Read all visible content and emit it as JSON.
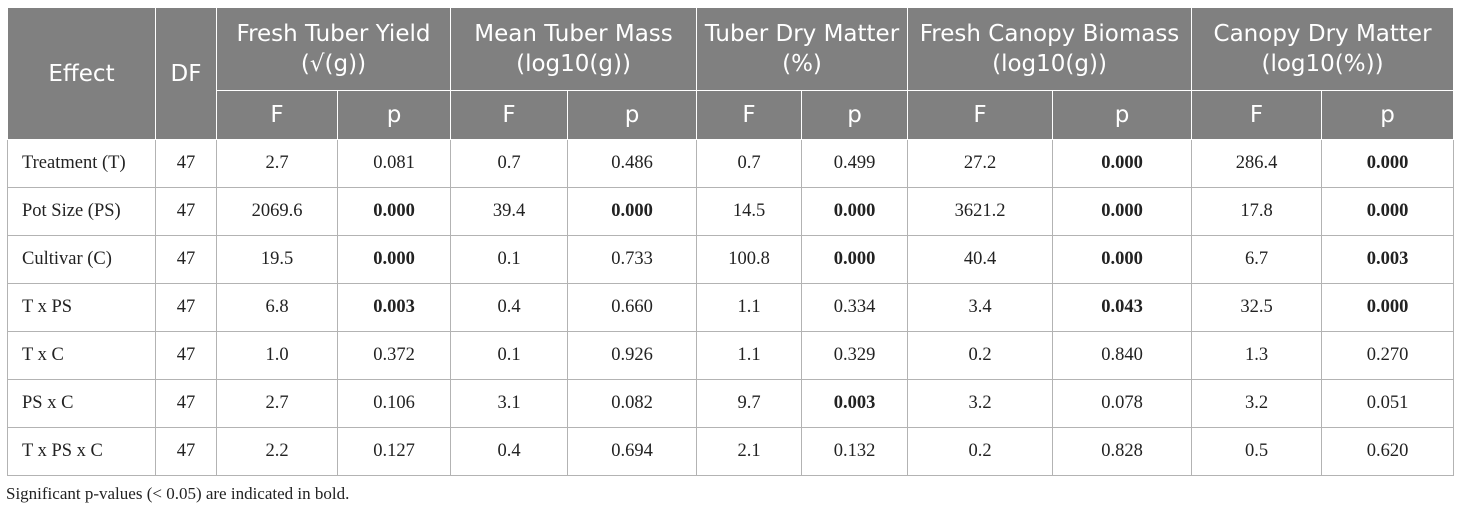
{
  "table": {
    "header": {
      "effect": "Effect",
      "df": "DF",
      "groups": [
        "Fresh Tuber Yield (√(g))",
        "Mean Tuber Mass (log10(g))",
        "Tuber Dry Matter (%)",
        "Fresh Canopy Biomass (log10(g))",
        "Canopy Dry Matter (log10(%))"
      ],
      "sub": [
        "F",
        "p",
        "F",
        "p",
        "F",
        "p",
        "F",
        "p",
        "F",
        "p"
      ]
    },
    "rows": [
      {
        "effect": "Treatment (T)",
        "df": "47",
        "cells": [
          {
            "v": "2.7",
            "b": false
          },
          {
            "v": "0.081",
            "b": false
          },
          {
            "v": "0.7",
            "b": false
          },
          {
            "v": "0.486",
            "b": false
          },
          {
            "v": "0.7",
            "b": false
          },
          {
            "v": "0.499",
            "b": false
          },
          {
            "v": "27.2",
            "b": false
          },
          {
            "v": "0.000",
            "b": true
          },
          {
            "v": "286.4",
            "b": false
          },
          {
            "v": "0.000",
            "b": true
          }
        ]
      },
      {
        "effect": "Pot Size (PS)",
        "df": "47",
        "cells": [
          {
            "v": "2069.6",
            "b": false
          },
          {
            "v": "0.000",
            "b": true
          },
          {
            "v": "39.4",
            "b": false
          },
          {
            "v": "0.000",
            "b": true
          },
          {
            "v": "14.5",
            "b": false
          },
          {
            "v": "0.000",
            "b": true
          },
          {
            "v": "3621.2",
            "b": false
          },
          {
            "v": "0.000",
            "b": true
          },
          {
            "v": "17.8",
            "b": false
          },
          {
            "v": "0.000",
            "b": true
          }
        ]
      },
      {
        "effect": "Cultivar (C)",
        "df": "47",
        "cells": [
          {
            "v": "19.5",
            "b": false
          },
          {
            "v": "0.000",
            "b": true
          },
          {
            "v": "0.1",
            "b": false
          },
          {
            "v": "0.733",
            "b": false
          },
          {
            "v": "100.8",
            "b": false
          },
          {
            "v": "0.000",
            "b": true
          },
          {
            "v": "40.4",
            "b": false
          },
          {
            "v": "0.000",
            "b": true
          },
          {
            "v": "6.7",
            "b": false
          },
          {
            "v": "0.003",
            "b": true
          }
        ]
      },
      {
        "effect": "T x PS",
        "df": "47",
        "cells": [
          {
            "v": "6.8",
            "b": false
          },
          {
            "v": "0.003",
            "b": true
          },
          {
            "v": "0.4",
            "b": false
          },
          {
            "v": "0.660",
            "b": false
          },
          {
            "v": "1.1",
            "b": false
          },
          {
            "v": "0.334",
            "b": false
          },
          {
            "v": "3.4",
            "b": false
          },
          {
            "v": "0.043",
            "b": true
          },
          {
            "v": "32.5",
            "b": false
          },
          {
            "v": "0.000",
            "b": true
          }
        ]
      },
      {
        "effect": "T x C",
        "df": "47",
        "cells": [
          {
            "v": "1.0",
            "b": false
          },
          {
            "v": "0.372",
            "b": false
          },
          {
            "v": "0.1",
            "b": false
          },
          {
            "v": "0.926",
            "b": false
          },
          {
            "v": "1.1",
            "b": false
          },
          {
            "v": "0.329",
            "b": false
          },
          {
            "v": "0.2",
            "b": false
          },
          {
            "v": "0.840",
            "b": false
          },
          {
            "v": "1.3",
            "b": false
          },
          {
            "v": "0.270",
            "b": false
          }
        ]
      },
      {
        "effect": "PS x C",
        "df": "47",
        "cells": [
          {
            "v": "2.7",
            "b": false
          },
          {
            "v": "0.106",
            "b": false
          },
          {
            "v": "3.1",
            "b": false
          },
          {
            "v": "0.082",
            "b": false
          },
          {
            "v": "9.7",
            "b": false
          },
          {
            "v": "0.003",
            "b": true
          },
          {
            "v": "3.2",
            "b": false
          },
          {
            "v": "0.078",
            "b": false
          },
          {
            "v": "3.2",
            "b": false
          },
          {
            "v": "0.051",
            "b": false
          }
        ]
      },
      {
        "effect": "T x PS x C",
        "df": "47",
        "cells": [
          {
            "v": "2.2",
            "b": false
          },
          {
            "v": "0.127",
            "b": false
          },
          {
            "v": "0.4",
            "b": false
          },
          {
            "v": "0.694",
            "b": false
          },
          {
            "v": "2.1",
            "b": false
          },
          {
            "v": "0.132",
            "b": false
          },
          {
            "v": "0.2",
            "b": false
          },
          {
            "v": "0.828",
            "b": false
          },
          {
            "v": "0.5",
            "b": false
          },
          {
            "v": "0.620",
            "b": false
          }
        ]
      }
    ]
  },
  "note": "Significant p-values (< 0.05) are indicated in bold.",
  "colors": {
    "header_bg": "#808080",
    "header_text": "#ffffff",
    "grid": "#b3b3b3"
  }
}
